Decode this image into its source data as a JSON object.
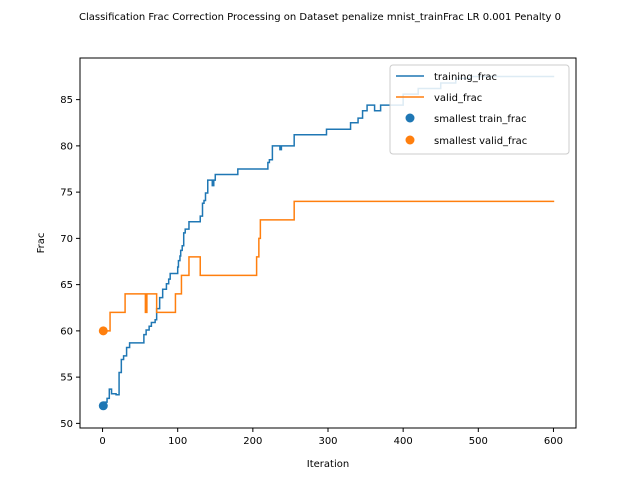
{
  "chart_data": {
    "type": "line",
    "title": "Classification Frac Correction Processing on Dataset penalize mnist_trainFrac LR 0.001 Penalty 0",
    "xlabel": "Iteration",
    "ylabel": "Frac",
    "xlim": [
      -30,
      630
    ],
    "ylim": [
      49.5,
      89.5
    ],
    "xticks": [
      0,
      100,
      200,
      300,
      400,
      500,
      600
    ],
    "yticks": [
      50,
      55,
      60,
      65,
      70,
      75,
      80,
      85
    ],
    "grid": false,
    "legend_position": "top-right",
    "series": [
      {
        "name": "training_frac",
        "color": "#1f77b4",
        "step": true,
        "x": [
          0,
          3,
          6,
          9,
          12,
          18,
          22,
          25,
          28,
          32,
          36,
          40,
          55,
          58,
          62,
          65,
          70,
          72,
          76,
          80,
          85,
          88,
          90,
          100,
          101,
          103,
          104,
          106,
          108,
          110,
          115,
          117,
          122,
          130,
          133,
          135,
          137,
          140,
          143,
          146,
          148,
          150,
          153,
          157,
          160,
          180,
          220,
          222,
          226,
          230,
          236,
          238,
          255,
          298,
          320,
          330,
          340,
          346,
          352,
          362,
          370,
          398,
          400,
          420,
          430,
          450,
          470,
          490,
          530,
          560,
          601
        ],
        "y": [
          51.9,
          52.3,
          52.7,
          53.7,
          53.2,
          53.1,
          55.5,
          56.9,
          57.3,
          58.2,
          58.7,
          58.7,
          59.6,
          60.1,
          60.5,
          60.9,
          61.2,
          62.4,
          63.6,
          64.5,
          65.1,
          65.6,
          66.2,
          66.9,
          67.6,
          68.1,
          68.7,
          69.2,
          70.6,
          71.0,
          71.8,
          71.8,
          71.8,
          72.4,
          73.8,
          74.1,
          74.9,
          76.3,
          76.3,
          75.7,
          76.3,
          76.9,
          76.9,
          76.9,
          76.9,
          77.5,
          78.2,
          78.5,
          80.0,
          80.0,
          79.6,
          80.0,
          81.2,
          81.8,
          81.8,
          82.5,
          83.0,
          83.8,
          84.4,
          83.8,
          84.4,
          84.4,
          85.6,
          86.2,
          86.2,
          86.8,
          87.3,
          87.5,
          87.5,
          87.5,
          87.5
        ]
      },
      {
        "name": "valid_frac",
        "color": "#ff7f0e",
        "step": true,
        "x": [
          0,
          5,
          10,
          30,
          55,
          57,
          59,
          70,
          72,
          75,
          95,
          97,
          105,
          110,
          115,
          130,
          195,
          205,
          208,
          210,
          255,
          601
        ],
        "y": [
          60,
          60,
          62,
          64,
          64,
          62,
          64,
          64,
          62,
          62,
          62,
          64,
          66,
          66,
          68,
          66,
          66,
          68,
          70,
          72,
          74,
          74
        ]
      }
    ],
    "scatter": [
      {
        "name": "smallest train_frac",
        "color": "#1f77b4",
        "x": 1,
        "y": 51.9
      },
      {
        "name": "smallest valid_frac",
        "color": "#ff7f0e",
        "x": 1,
        "y": 60.0
      }
    ]
  }
}
